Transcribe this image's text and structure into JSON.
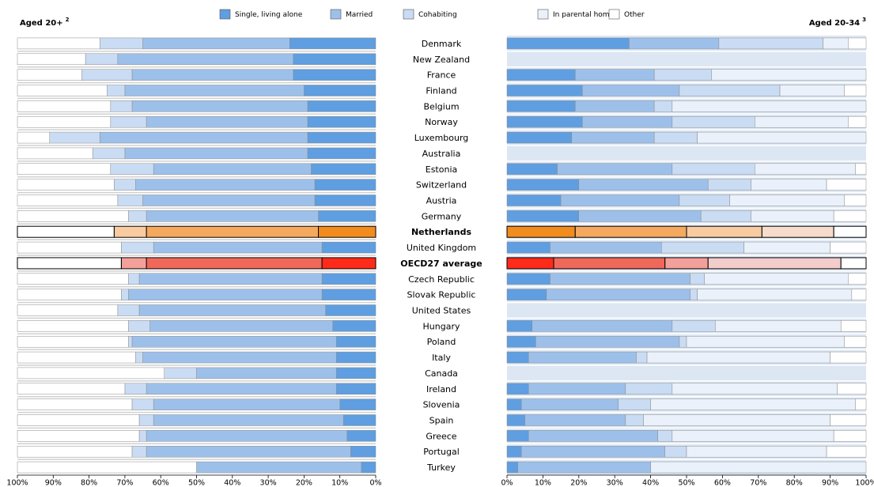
{
  "chart_data": [
    {
      "type": "stacked_hbar",
      "title": "Aged 20+",
      "title_note": "2",
      "categories": [
        "Denmark",
        "New Zealand",
        "France",
        "Finland",
        "Belgium",
        "Norway",
        "Luxembourg",
        "Australia",
        "Estonia",
        "Switzerland",
        "Austria",
        "Germany",
        "Netherlands",
        "United Kingdom",
        "OECD27 average",
        "Czech Republic",
        "Slovak Republic",
        "United States",
        "Hungary",
        "Poland",
        "Italy",
        "Canada",
        "Ireland",
        "Slovenia",
        "Spain",
        "Greece",
        "Portugal",
        "Turkey"
      ],
      "xlim": [
        100,
        0
      ],
      "xticks": [
        {
          "value": 100,
          "label": "100%"
        },
        {
          "value": 90,
          "label": "90%"
        },
        {
          "value": 80,
          "label": "80%"
        },
        {
          "value": 70,
          "label": "70%"
        },
        {
          "value": 60,
          "label": "60%"
        },
        {
          "value": 50,
          "label": "50%"
        },
        {
          "value": 40,
          "label": "40%"
        },
        {
          "value": 30,
          "label": "30%"
        },
        {
          "value": 20,
          "label": "20%"
        },
        {
          "value": 10,
          "label": "10%"
        },
        {
          "value": 0,
          "label": "0%"
        }
      ],
      "background": "#ffffff",
      "row_line": "#d0d0d0",
      "highlights": [
        {
          "index": 12,
          "colors": [
            "#f28c1e",
            "#f4a95e",
            "#f8cba0",
            "#ffffff"
          ]
        },
        {
          "index": 14,
          "colors": [
            "#ff2b1a",
            "#f0685a",
            "#f3a09a",
            "#ffffff"
          ]
        }
      ],
      "series": [
        {
          "color": "#5f9ee0",
          "values": [
            24,
            23,
            23,
            20,
            19,
            19,
            19,
            19,
            18,
            17,
            17,
            16,
            16,
            15,
            15,
            15,
            15,
            14,
            12,
            11,
            11,
            11,
            11,
            10,
            9,
            8,
            7,
            4
          ]
        },
        {
          "color": "#9dc0ea",
          "values": [
            41,
            49,
            45,
            50,
            49,
            45,
            58,
            51,
            44,
            50,
            48,
            48,
            48,
            47,
            49,
            51,
            54,
            52,
            51,
            57,
            54,
            39,
            53,
            52,
            53,
            56,
            57,
            46
          ]
        },
        {
          "color": "#c9dcf3",
          "values": [
            12,
            9,
            14,
            5,
            6,
            10,
            14,
            9,
            12,
            6,
            7,
            5,
            9,
            9,
            7,
            3,
            2,
            6,
            6,
            1,
            2,
            9,
            6,
            6,
            4,
            2,
            4,
            0
          ]
        },
        {
          "color": "#ffffff",
          "values": [
            23,
            19,
            18,
            25,
            26,
            26,
            9,
            21,
            26,
            27,
            28,
            31,
            27,
            29,
            29,
            31,
            29,
            28,
            31,
            31,
            33,
            41,
            30,
            32,
            34,
            34,
            32,
            50
          ]
        }
      ]
    },
    {
      "type": "stacked_hbar",
      "title": "Aged 20-34",
      "title_note": "3",
      "xlim": [
        0,
        100
      ],
      "xticks": [
        {
          "value": 0,
          "label": "0%"
        },
        {
          "value": 10,
          "label": "10%"
        },
        {
          "value": 20,
          "label": "20%"
        },
        {
          "value": 30,
          "label": "30%"
        },
        {
          "value": 40,
          "label": "40%"
        },
        {
          "value": 50,
          "label": "50%"
        },
        {
          "value": 60,
          "label": "60%"
        },
        {
          "value": 70,
          "label": "70%"
        },
        {
          "value": 80,
          "label": "80%"
        },
        {
          "value": 90,
          "label": "90%"
        },
        {
          "value": 100,
          "label": "100%"
        }
      ],
      "background": "#dde7f3",
      "row_line": "#ffffff",
      "highlights": [
        {
          "index": 12,
          "colors": [
            "#f28c1e",
            "#f4a95e",
            "#f8cba0",
            "#f6dccb",
            "#ffffff"
          ]
        },
        {
          "index": 14,
          "colors": [
            "#ff2b1a",
            "#f0685a",
            "#f3a09a",
            "#f2cdcb",
            "#ffffff"
          ]
        }
      ],
      "series": [
        {
          "name": "Single, living alone",
          "color": "#5f9ee0",
          "values": [
            34,
            null,
            19,
            21,
            19,
            21,
            18,
            null,
            14,
            20,
            15,
            20,
            19,
            12,
            13,
            12,
            11,
            null,
            7,
            8,
            6,
            null,
            6,
            4,
            5,
            6,
            4,
            3
          ]
        },
        {
          "name": "Married",
          "color": "#9dc0ea",
          "values": [
            25,
            null,
            22,
            27,
            22,
            25,
            23,
            null,
            32,
            36,
            33,
            34,
            31,
            31,
            31,
            39,
            40,
            null,
            39,
            40,
            30,
            null,
            27,
            27,
            28,
            36,
            40,
            37
          ]
        },
        {
          "name": "Cohabiting",
          "color": "#c9dcf3",
          "values": [
            29,
            null,
            16,
            28,
            5,
            23,
            12,
            null,
            23,
            12,
            14,
            14,
            21,
            23,
            12,
            4,
            2,
            null,
            12,
            2,
            3,
            null,
            13,
            9,
            5,
            4,
            6,
            0
          ]
        },
        {
          "name": "In parental home",
          "color": "#eaf1fa",
          "values": [
            7,
            null,
            43,
            18,
            54,
            26,
            47,
            null,
            28,
            21,
            32,
            23,
            20,
            24,
            37,
            40,
            43,
            null,
            35,
            44,
            51,
            null,
            46,
            57,
            52,
            45,
            39,
            60
          ]
        },
        {
          "name": "Other",
          "color": "#ffffff",
          "values": [
            5,
            null,
            0,
            6,
            0,
            5,
            0,
            null,
            3,
            11,
            6,
            9,
            9,
            10,
            7,
            5,
            4,
            null,
            7,
            6,
            10,
            null,
            8,
            3,
            10,
            9,
            11,
            0
          ]
        }
      ]
    }
  ]
}
